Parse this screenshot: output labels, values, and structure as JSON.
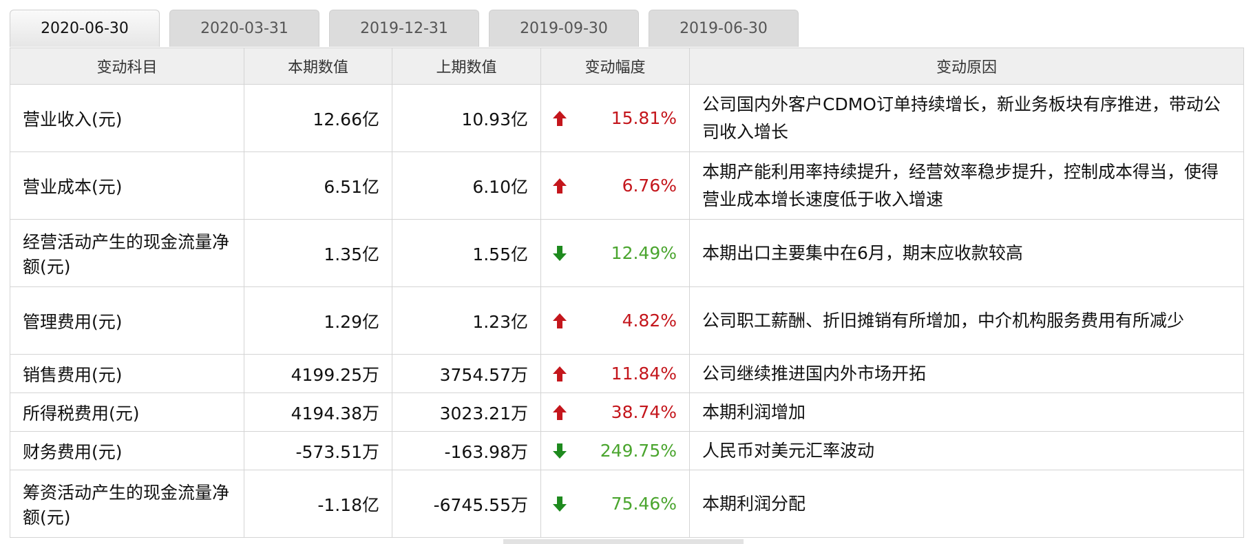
{
  "tabs": [
    "2020-06-30",
    "2020-03-31",
    "2019-12-31",
    "2019-09-30",
    "2019-06-30"
  ],
  "active_tab": 0,
  "table": {
    "headers": [
      "变动科目",
      "本期数值",
      "上期数值",
      "变动幅度",
      "变动原因"
    ],
    "rows": [
      {
        "item": "营业收入(元)",
        "current": "12.66亿",
        "previous": "10.93亿",
        "trend": "up",
        "change": "15.81%",
        "reason": "公司国内外客户CDMO订单持续增长，新业务板块有序推进，带动公司收入增长"
      },
      {
        "item": "营业成本(元)",
        "current": "6.51亿",
        "previous": "6.10亿",
        "trend": "up",
        "change": "6.76%",
        "reason": "本期产能利用率持续提升，经营效率稳步提升，控制成本得当，使得营业成本增长速度低于收入增速"
      },
      {
        "item": "经营活动产生的现金流量净额(元)",
        "current": "1.35亿",
        "previous": "1.55亿",
        "trend": "down",
        "change": "12.49%",
        "reason": "本期出口主要集中在6月，期末应收款较高"
      },
      {
        "item": "管理费用(元)",
        "current": "1.29亿",
        "previous": "1.23亿",
        "trend": "up",
        "change": "4.82%",
        "reason": "公司职工薪酬、折旧摊销有所增加，中介机构服务费用有所减少"
      },
      {
        "item": "销售费用(元)",
        "current": "4199.25万",
        "previous": "3754.57万",
        "trend": "up",
        "change": "11.84%",
        "reason": "公司继续推进国内外市场开拓"
      },
      {
        "item": "所得税费用(元)",
        "current": "4194.38万",
        "previous": "3023.21万",
        "trend": "up",
        "change": "38.74%",
        "reason": "本期利润增加"
      },
      {
        "item": "财务费用(元)",
        "current": "-573.51万",
        "previous": "-163.98万",
        "trend": "down",
        "change": "249.75%",
        "reason": "人民币对美元汇率波动"
      },
      {
        "item": "筹资活动产生的现金流量净额(元)",
        "current": "-1.18亿",
        "previous": "-6745.55万",
        "trend": "down",
        "change": "75.46%",
        "reason": "本期利润分配"
      }
    ]
  }
}
